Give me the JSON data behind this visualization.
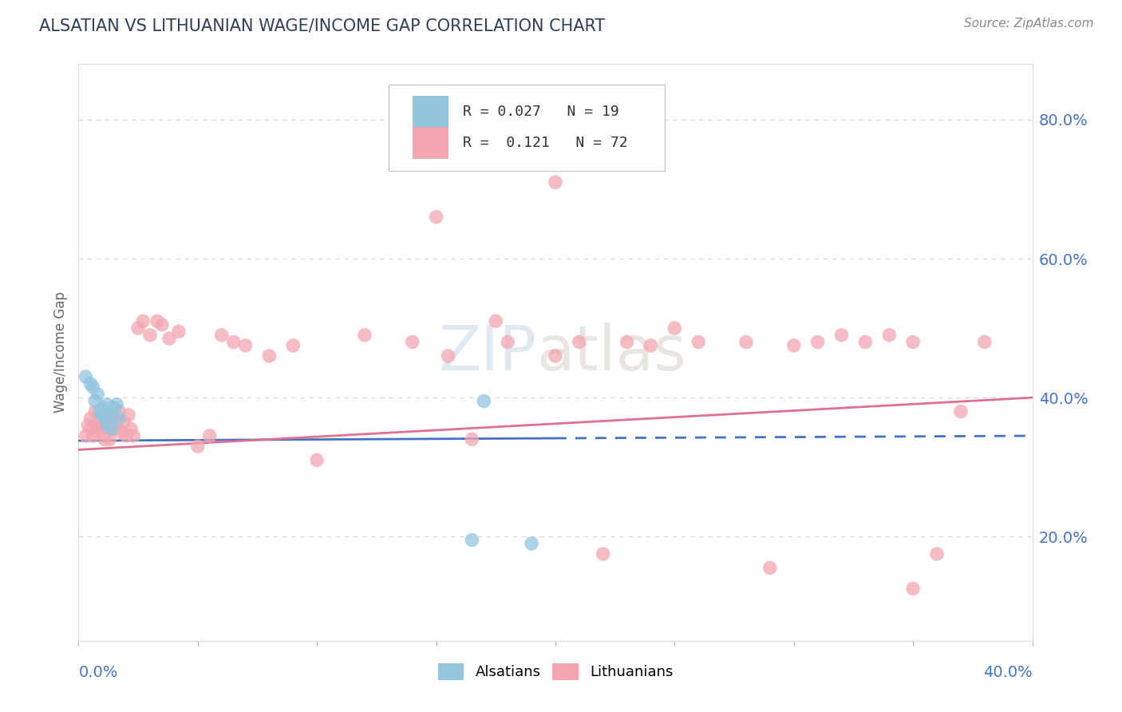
{
  "title": "ALSATIAN VS LITHUANIAN WAGE/INCOME GAP CORRELATION CHART",
  "source_text": "Source: ZipAtlas.com",
  "ylabel": "Wage/Income Gap",
  "xlim": [
    0.0,
    0.4
  ],
  "ylim": [
    0.05,
    0.88
  ],
  "yticks": [
    0.2,
    0.4,
    0.6,
    0.8
  ],
  "ytick_labels": [
    "20.0%",
    "40.0%",
    "60.0%",
    "80.0%"
  ],
  "alsatian_color": "#92C5DE",
  "lithuanian_color": "#F4A6B0",
  "alsatian_line_color": "#4472C4",
  "lithuanian_line_color": "#E07090",
  "title_color": "#2E4057",
  "axis_label_color": "#4472C4",
  "watermark_zip": "ZIP",
  "watermark_atlas": "atlas",
  "background_color": "#FFFFFF",
  "grid_color": "#CCCCCC",
  "als_x": [
    0.003,
    0.005,
    0.006,
    0.007,
    0.008,
    0.009,
    0.01,
    0.01,
    0.011,
    0.012,
    0.012,
    0.013,
    0.014,
    0.015,
    0.016,
    0.017,
    0.165,
    0.17,
    0.19
  ],
  "als_y": [
    0.43,
    0.42,
    0.415,
    0.395,
    0.405,
    0.38,
    0.385,
    0.375,
    0.37,
    0.39,
    0.36,
    0.375,
    0.355,
    0.385,
    0.39,
    0.37,
    0.195,
    0.395,
    0.19
  ],
  "lith_x": [
    0.003,
    0.004,
    0.005,
    0.005,
    0.006,
    0.007,
    0.007,
    0.008,
    0.008,
    0.009,
    0.009,
    0.01,
    0.01,
    0.011,
    0.011,
    0.012,
    0.012,
    0.013,
    0.013,
    0.014,
    0.015,
    0.015,
    0.016,
    0.017,
    0.018,
    0.019,
    0.02,
    0.021,
    0.022,
    0.023,
    0.025,
    0.027,
    0.03,
    0.033,
    0.035,
    0.038,
    0.042,
    0.05,
    0.055,
    0.06,
    0.065,
    0.07,
    0.08,
    0.09,
    0.1,
    0.12,
    0.14,
    0.155,
    0.165,
    0.18,
    0.2,
    0.21,
    0.22,
    0.23,
    0.24,
    0.26,
    0.28,
    0.3,
    0.31,
    0.32,
    0.33,
    0.34,
    0.35,
    0.36,
    0.37,
    0.38,
    0.2,
    0.15,
    0.175,
    0.25,
    0.29,
    0.35
  ],
  "lith_y": [
    0.345,
    0.36,
    0.355,
    0.37,
    0.345,
    0.36,
    0.38,
    0.35,
    0.365,
    0.375,
    0.355,
    0.36,
    0.375,
    0.34,
    0.365,
    0.355,
    0.375,
    0.34,
    0.375,
    0.36,
    0.355,
    0.37,
    0.36,
    0.38,
    0.35,
    0.365,
    0.345,
    0.375,
    0.355,
    0.345,
    0.5,
    0.51,
    0.49,
    0.51,
    0.505,
    0.485,
    0.495,
    0.33,
    0.345,
    0.49,
    0.48,
    0.475,
    0.46,
    0.475,
    0.31,
    0.49,
    0.48,
    0.46,
    0.34,
    0.48,
    0.46,
    0.48,
    0.175,
    0.48,
    0.475,
    0.48,
    0.48,
    0.475,
    0.48,
    0.49,
    0.48,
    0.49,
    0.48,
    0.175,
    0.38,
    0.48,
    0.71,
    0.66,
    0.51,
    0.5,
    0.155,
    0.125
  ]
}
